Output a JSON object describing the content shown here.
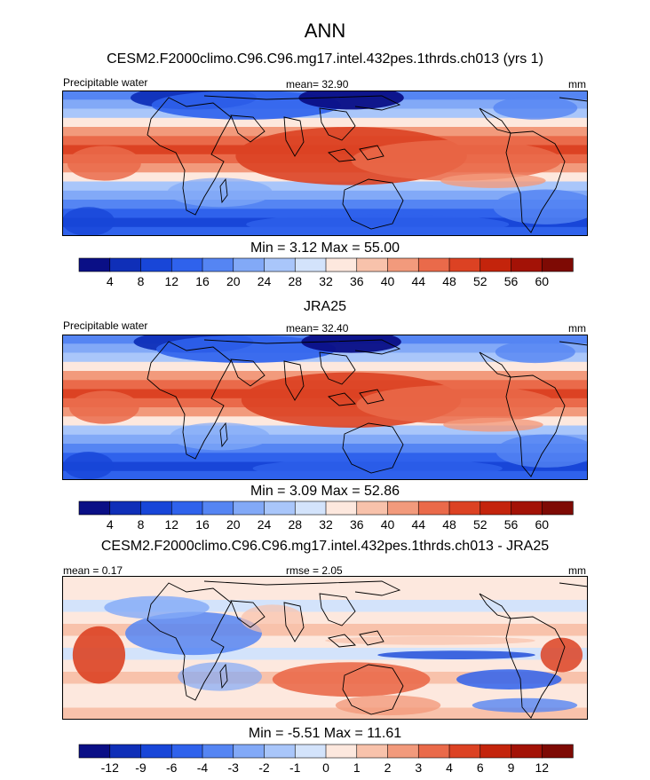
{
  "header": {
    "title": "ANN",
    "model_title": "CESM2.F2000climo.C96.C96.mg17.intel.432pes.1thrds.ch013 (yrs 1)",
    "obs_title": "JRA25",
    "diff_title": "CESM2.F2000climo.C96.C96.mg17.intel.432pes.1thrds.ch013 - JRA25"
  },
  "panels": [
    {
      "id": "model",
      "left_label": "Precipitable water",
      "center_label": "mean=  32.90",
      "right_label": "mm",
      "minmax": "Min =   3.12 Max =  55.00"
    },
    {
      "id": "obs",
      "left_label": "Precipitable water",
      "center_label": "mean=  32.40",
      "right_label": "mm",
      "minmax": "Min =   3.09 Max =  52.86"
    },
    {
      "id": "diff",
      "left_label": "mean =   0.17",
      "center_label": "rmse =   2.05",
      "right_label": "mm",
      "minmax": "Min =  -5.51 Max =  11.61"
    }
  ],
  "colors": {
    "scale": [
      "#0a0f86",
      "#0f2fb8",
      "#1846d8",
      "#2f62ec",
      "#5585f3",
      "#82a9f7",
      "#a9c6fa",
      "#d3e3fb",
      "#fde8de",
      "#f8c2ab",
      "#f29a7c",
      "#ea6a4a",
      "#dc4223",
      "#c4240c",
      "#a31206",
      "#7e0a04"
    ]
  },
  "chart_data": [
    {
      "type": "heatmap",
      "title": "CESM2.F2000climo.C96.C96.mg17.intel.432pes.1thrds.ch013 (yrs 1)",
      "variable": "Precipitable water",
      "units": "mm",
      "mean": 32.9,
      "min": 3.12,
      "max": 55.0,
      "colorbar_levels": [
        4,
        8,
        12,
        16,
        20,
        24,
        28,
        32,
        36,
        40,
        44,
        48,
        52,
        56,
        60
      ],
      "grid": false
    },
    {
      "type": "heatmap",
      "title": "JRA25",
      "variable": "Precipitable water",
      "units": "mm",
      "mean": 32.4,
      "min": 3.09,
      "max": 52.86,
      "colorbar_levels": [
        4,
        8,
        12,
        16,
        20,
        24,
        28,
        32,
        36,
        40,
        44,
        48,
        52,
        56,
        60
      ],
      "grid": false
    },
    {
      "type": "heatmap",
      "title": "CESM2.F2000climo.C96.C96.mg17.intel.432pes.1thrds.ch013 - JRA25",
      "units": "mm",
      "mean": 0.17,
      "rmse": 2.05,
      "min": -5.51,
      "max": 11.61,
      "colorbar_levels": [
        -12,
        -9,
        -6,
        -4,
        -3,
        -2,
        -1,
        0,
        1,
        2,
        3,
        4,
        6,
        9,
        12
      ],
      "grid": false
    }
  ]
}
